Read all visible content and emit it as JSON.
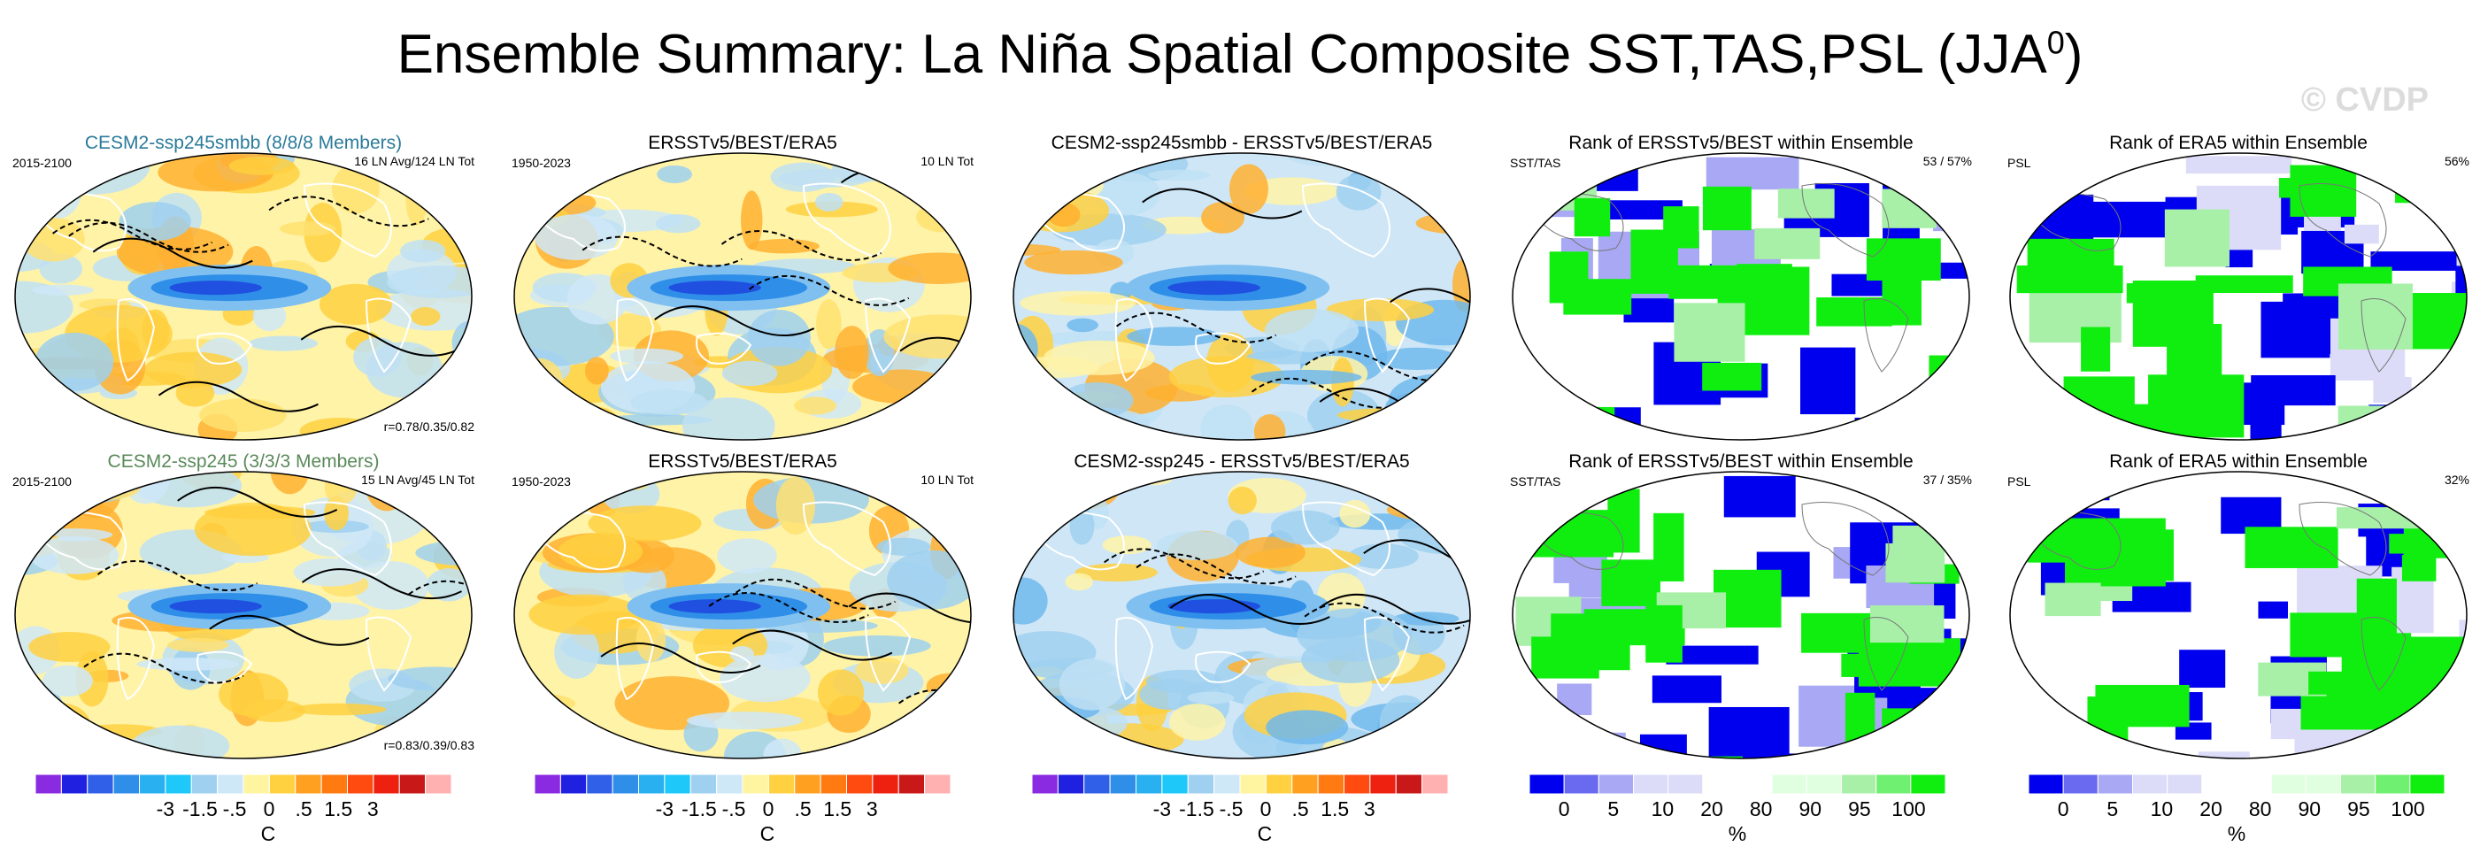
{
  "figure": {
    "title_main": "Ensemble Summary: La Niña Spatial Composite SST,TAS,PSL (JJA",
    "title_sup": "0",
    "title_end": ")",
    "watermark": "© CVDP"
  },
  "rows": [
    {
      "panels": [
        {
          "title": "CESM2-ssp245smbb (8/8/8 Members)",
          "title_color": "#2a7a9a",
          "left": "2015-2100",
          "right": "16 LN Avg/124 LN Tot",
          "bottom": "r=0.78/0.35/0.82",
          "kind": "sst"
        },
        {
          "title": "ERSSTv5/BEST/ERA5",
          "title_color": "#000000",
          "left": "1950-2023",
          "right": "10 LN Tot",
          "bottom": "",
          "kind": "sst"
        },
        {
          "title": "CESM2-ssp245smbb - ERSSTv5/BEST/ERA5",
          "title_color": "#000000",
          "left": "",
          "right": "",
          "bottom": "",
          "kind": "diff"
        },
        {
          "title": "Rank of ERSSTv5/BEST within Ensemble",
          "title_color": "#000000",
          "left": "SST/TAS",
          "right": "53 /  57%",
          "bottom": "",
          "kind": "rank"
        },
        {
          "title": "Rank of ERA5 within Ensemble",
          "title_color": "#000000",
          "left": "PSL",
          "right": "56%",
          "bottom": "",
          "kind": "rank2"
        }
      ]
    },
    {
      "panels": [
        {
          "title": "CESM2-ssp245 (3/3/3 Members)",
          "title_color": "#5a8a5a",
          "left": "2015-2100",
          "right": "15 LN Avg/45 LN Tot",
          "bottom": "r=0.83/0.39/0.83",
          "kind": "sst"
        },
        {
          "title": "ERSSTv5/BEST/ERA5",
          "title_color": "#000000",
          "left": "1950-2023",
          "right": "10 LN Tot",
          "bottom": "",
          "kind": "sst"
        },
        {
          "title": "CESM2-ssp245 - ERSSTv5/BEST/ERA5",
          "title_color": "#000000",
          "left": "",
          "right": "",
          "bottom": "",
          "kind": "diff"
        },
        {
          "title": "Rank of ERSSTv5/BEST within Ensemble",
          "title_color": "#000000",
          "left": "SST/TAS",
          "right": "37 /  35%",
          "bottom": "",
          "kind": "rank"
        },
        {
          "title": "Rank of ERA5 within Ensemble",
          "title_color": "#000000",
          "left": "PSL",
          "right": "32%",
          "bottom": "",
          "kind": "rank2"
        }
      ]
    }
  ],
  "colorbars": {
    "temp": {
      "colors": [
        "#8a2be2",
        "#2020e0",
        "#3060e8",
        "#2e8ee8",
        "#28b0f0",
        "#1ec8f8",
        "#9fd0f0",
        "#cfe8f8",
        "#fff5a0",
        "#ffd040",
        "#ffa020",
        "#ff7a10",
        "#ff4a10",
        "#ee2010",
        "#c81818",
        "#ffb0b0"
      ],
      "ticks": [
        "-3",
        "-1.5",
        "-.5",
        "0",
        ".5",
        "1.5",
        "3"
      ],
      "unit": "C"
    },
    "rank": {
      "colors": [
        "#0000ee",
        "#6a6af0",
        "#a8a8f4",
        "#dcdcf8",
        "#dcdcf8",
        "#ffffff",
        "#ffffff",
        "#e0ffe0",
        "#e0ffe0",
        "#a8f0a8",
        "#70f070",
        "#10ee10"
      ],
      "ticks": [
        "0",
        "5",
        "10",
        "20",
        "80",
        "90",
        "95",
        "100"
      ],
      "unit": "%"
    }
  }
}
